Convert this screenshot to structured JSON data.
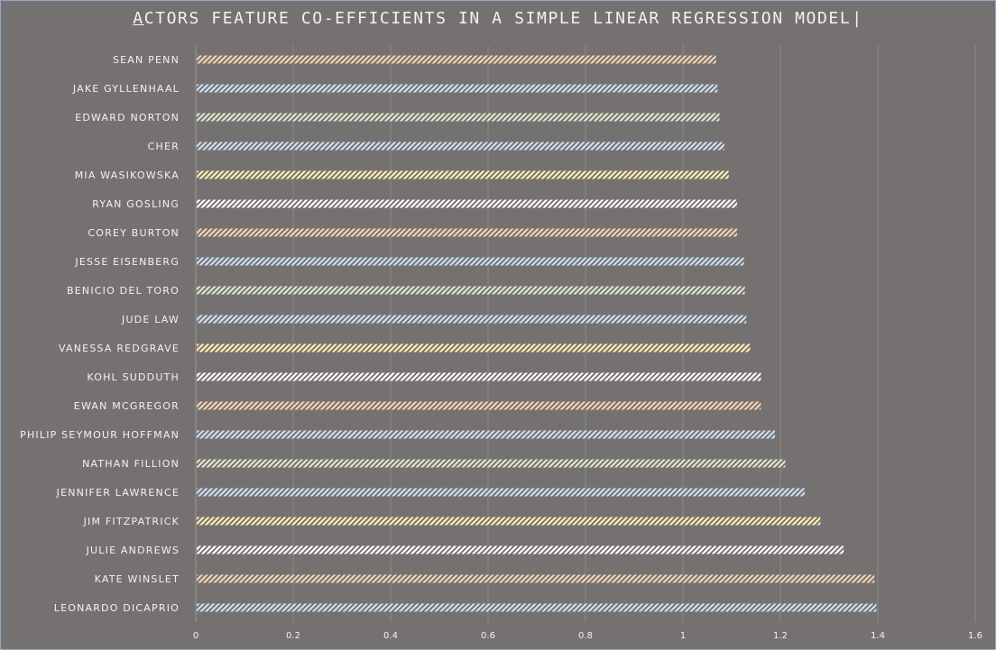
{
  "chart_data": {
    "type": "bar",
    "orientation": "horizontal",
    "title": "ACTORS FEATURE CO-EFFICIENTS IN A SIMPLE LINEAR REGRESSION MODEL",
    "title_first": "A",
    "title_rest": "CTORS FEATURE CO-EFFICIENTS IN A SIMPLE LINEAR REGRESSION MODEL",
    "title_cursor": "|",
    "xlabel": "",
    "ylabel": "",
    "xlim": [
      0,
      1.6
    ],
    "x_ticks": [
      "0",
      "0.2",
      "0.4",
      "0.6",
      "0.8",
      "1",
      "1.2",
      "1.4",
      "1.6"
    ],
    "grid": "vertical",
    "categories": [
      "SEAN PENN",
      "JAKE GYLLENHAAL",
      "EDWARD NORTON",
      "CHER",
      "MIA WASIKOWSKA",
      "RYAN GOSLING",
      "COREY BURTON",
      "JESSE EISENBERG",
      "BENICIO DEL TORO",
      "JUDE LAW",
      "VANESSA REDGRAVE",
      "KOHL SUDDUTH",
      "EWAN MCGREGOR",
      "PHILIP SEYMOUR HOFFMAN",
      "NATHAN FILLION",
      "JENNIFER LAWRENCE",
      "JIM FITZPATRICK",
      "JULIE ANDREWS",
      "KATE WINSLET",
      "LEONARDO DICAPRIO"
    ],
    "values": [
      1.068,
      1.071,
      1.075,
      1.085,
      1.094,
      1.111,
      1.111,
      1.125,
      1.127,
      1.13,
      1.138,
      1.16,
      1.16,
      1.189,
      1.21,
      1.25,
      1.282,
      1.33,
      1.393,
      1.397
    ],
    "bar_colors": [
      "#f4d5b4",
      "#cde1f3",
      "#dde9cf",
      "#cde1f3",
      "#fdf0b4",
      "#ffffff",
      "#f4d5b4",
      "#cde1f3",
      "#dde9cf",
      "#cde1f3",
      "#fdf0b4",
      "#ffffff",
      "#f4d5b4",
      "#cde1f3",
      "#dde9cf",
      "#cde1f3",
      "#fdf0b4",
      "#ffffff",
      "#f4d5b4",
      "#cde1f3"
    ],
    "pattern": "diagonal-hatch",
    "background": "#767171",
    "text_color": "#f2f2f2",
    "grid_color": "#8c8989"
  }
}
